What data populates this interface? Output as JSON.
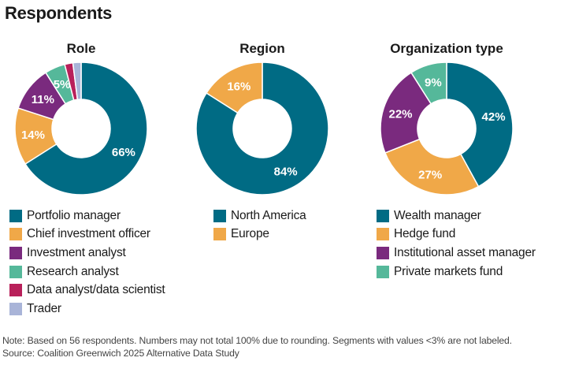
{
  "title": "Respondents",
  "chart_data": [
    {
      "type": "pie",
      "variant": "donut",
      "title": "Role",
      "categories": [
        "Portfolio manager",
        "Chief investment officer",
        "Investment analyst",
        "Research analyst",
        "Data analyst/data scientist",
        "Trader"
      ],
      "values": [
        66,
        14,
        11,
        5,
        2,
        2
      ],
      "labels": [
        "66%",
        "14%",
        "11%",
        "5%",
        "",
        ""
      ],
      "colors": [
        "#006b84",
        "#f0a848",
        "#7a2a7e",
        "#55b89a",
        "#b8205a",
        "#a9b4d8"
      ],
      "legend_position": "bottom"
    },
    {
      "type": "pie",
      "variant": "donut",
      "title": "Region",
      "categories": [
        "North America",
        "Europe"
      ],
      "values": [
        84,
        16
      ],
      "labels": [
        "84%",
        "16%"
      ],
      "colors": [
        "#006b84",
        "#f0a848"
      ],
      "legend_position": "bottom"
    },
    {
      "type": "pie",
      "variant": "donut",
      "title": "Organization type",
      "categories": [
        "Wealth manager",
        "Hedge fund",
        "Institutional asset manager",
        "Private markets fund"
      ],
      "values": [
        42,
        27,
        22,
        9
      ],
      "labels": [
        "42%",
        "27%",
        "22%",
        "9%"
      ],
      "colors": [
        "#006b84",
        "#f0a848",
        "#7a2a7e",
        "#55b89a"
      ],
      "legend_position": "bottom"
    }
  ],
  "notes": {
    "note": "Note: Based on 56 respondents. Numbers may not total 100% due to rounding. Segments with values <3% are not labeled.",
    "source": "Source: Coalition Greenwich 2025 Alternative Data Study"
  }
}
